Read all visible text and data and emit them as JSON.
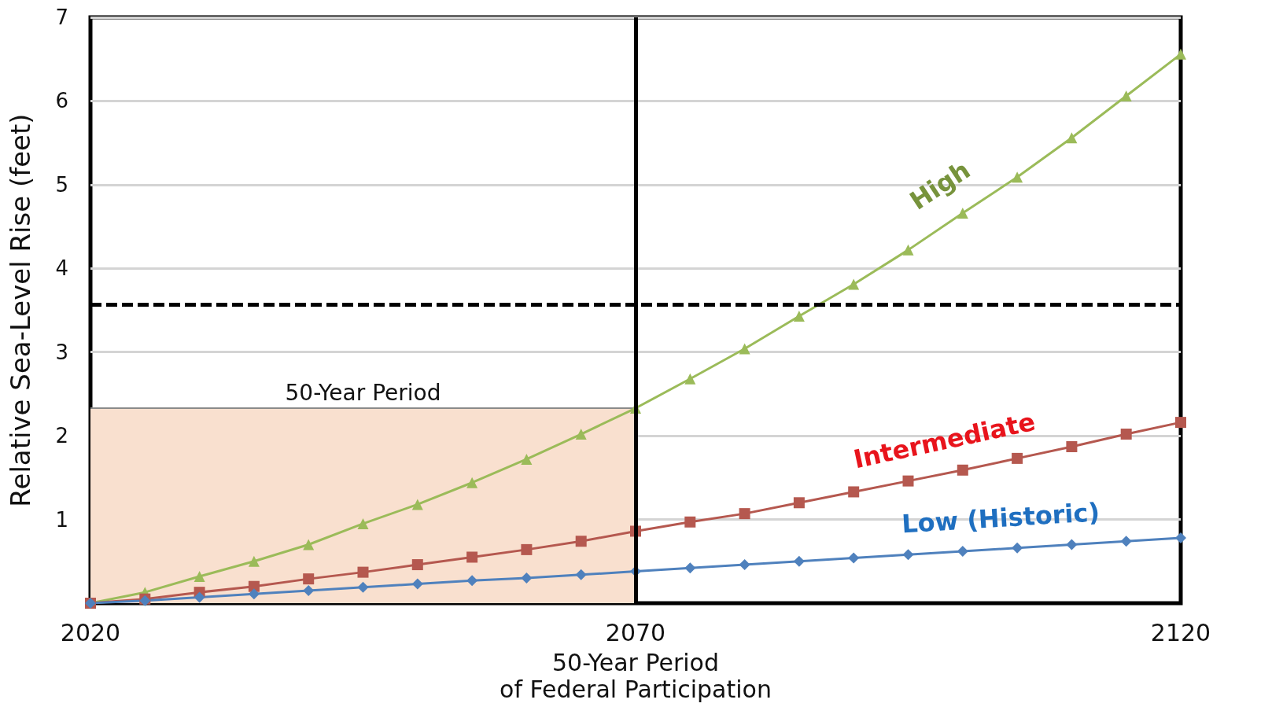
{
  "chart_data": {
    "type": "line",
    "xlabel": "50-Year Period\nof Federal Participation",
    "ylabel": "Relative Sea-Level Rise (feet)",
    "x": [
      2020,
      2025,
      2030,
      2035,
      2040,
      2045,
      2050,
      2055,
      2060,
      2065,
      2070,
      2075,
      2080,
      2085,
      2090,
      2095,
      2100,
      2105,
      2110,
      2115,
      2120
    ],
    "series": [
      {
        "type": "area",
        "x": [
          2020,
          2070
        ],
        "values": [
          2.33,
          2.33
        ],
        "color": "#f9e0cf",
        "marker": "none"
      },
      {
        "name": "High",
        "color": "#9bbb59",
        "marker": "triangle",
        "values": [
          0,
          0.13,
          0.32,
          0.5,
          0.7,
          0.95,
          1.18,
          1.44,
          1.72,
          2.02,
          2.33,
          2.68,
          3.04,
          3.43,
          3.81,
          4.22,
          4.66,
          5.09,
          5.56,
          6.06,
          6.56
        ]
      },
      {
        "name": "Intermediate",
        "color": "#b5584f",
        "marker": "square",
        "values": [
          0,
          0.05,
          0.13,
          0.2,
          0.29,
          0.37,
          0.46,
          0.55,
          0.64,
          0.74,
          0.86,
          0.97,
          1.07,
          1.2,
          1.33,
          1.46,
          1.59,
          1.73,
          1.87,
          2.02,
          2.16
        ]
      },
      {
        "name": "Low (Historic)",
        "color": "#4f81bd",
        "marker": "diamond",
        "values": [
          0,
          0.03,
          0.07,
          0.11,
          0.15,
          0.19,
          0.23,
          0.27,
          0.3,
          0.34,
          0.38,
          0.42,
          0.46,
          0.5,
          0.54,
          0.58,
          0.62,
          0.66,
          0.7,
          0.74,
          0.78
        ]
      }
    ],
    "xlim": [
      2020,
      2120
    ],
    "xticks": [
      2020,
      2070,
      2120
    ],
    "ylim": [
      0,
      7
    ],
    "yticks": [
      1,
      2,
      3,
      4,
      5,
      6,
      7
    ],
    "grid": "y",
    "legend": false,
    "ref_lines": [
      {
        "axis": "y",
        "value": 3.57,
        "line_style": "dashed",
        "color": "#000000"
      },
      {
        "axis": "x",
        "value": 2070,
        "line_style": "solid",
        "color": "#000000"
      }
    ],
    "annotations": [
      {
        "text": "50-Year Period",
        "x": 2045,
        "y": 2.33
      }
    ]
  }
}
